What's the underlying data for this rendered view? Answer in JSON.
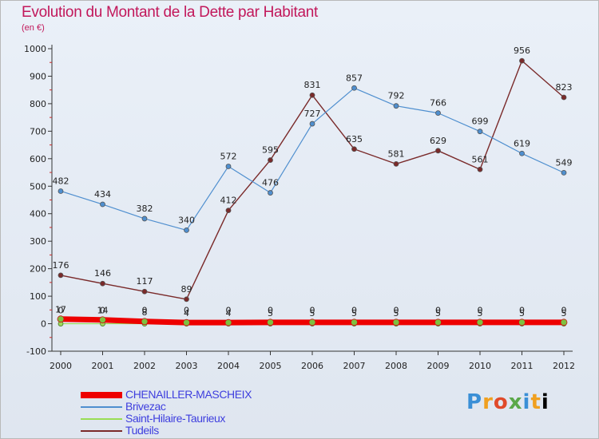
{
  "title": "Evolution du Montant de la Dette par Habitant",
  "subtitle": "(en €)",
  "logo": "Proxiti",
  "chart_data": {
    "type": "line",
    "x": [
      "2000",
      "2001",
      "2002",
      "2003",
      "2004",
      "2005",
      "2006",
      "2007",
      "2008",
      "2009",
      "2010",
      "2011",
      "2012"
    ],
    "ylim": [
      -100,
      1000
    ],
    "yticks": [
      -100,
      0,
      100,
      200,
      300,
      400,
      500,
      600,
      700,
      800,
      900,
      1000
    ],
    "grid": false,
    "legend": "bottom-left",
    "series": [
      {
        "name": "CHENAILLER-MASCHEIX",
        "color": "#ee0000",
        "values": [
          17,
          14,
          8,
          4,
          4,
          5,
          5,
          5,
          5,
          5,
          5,
          5,
          5
        ],
        "labels": [
          "17",
          "14",
          "8",
          "4",
          "4",
          "5",
          "5",
          "5",
          "5",
          "5",
          "5",
          "5",
          "5"
        ]
      },
      {
        "name": "Brivezac",
        "color": "#4f8fcf",
        "values": [
          482,
          434,
          382,
          340,
          572,
          476,
          727,
          857,
          792,
          766,
          699,
          619,
          549
        ],
        "labels": [
          "482",
          "434",
          "382",
          "340",
          "572",
          "476",
          "727",
          "857",
          "792",
          "766",
          "699",
          "619",
          "549"
        ]
      },
      {
        "name": "Saint-Hilaire-Taurieux",
        "color": "#99dd55",
        "values": [
          0,
          0,
          0,
          0,
          0,
          0,
          0,
          0,
          0,
          0,
          0,
          0,
          0
        ],
        "labels": [
          "0",
          "0",
          "0",
          "0",
          "0",
          "0",
          "0",
          "0",
          "0",
          "0",
          "0",
          "0",
          "0"
        ]
      },
      {
        "name": "Tudeils",
        "color": "#7a2a2a",
        "values": [
          176,
          146,
          117,
          89,
          412,
          595,
          831,
          635,
          581,
          629,
          561,
          956,
          823
        ],
        "labels": [
          "176",
          "146",
          "117",
          "89",
          "412",
          "595",
          "831",
          "635",
          "581",
          "629",
          "561",
          "956",
          "823"
        ]
      }
    ]
  }
}
